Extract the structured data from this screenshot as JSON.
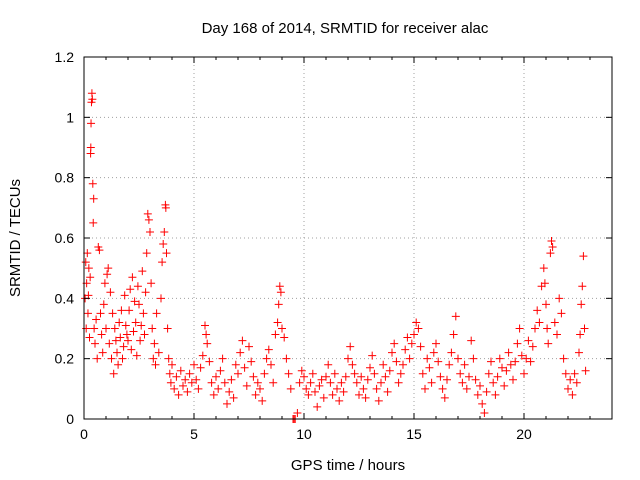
{
  "chart_data": {
    "type": "scatter",
    "title": "Day 168 of 2014, SRMTID for receiver alac",
    "xlabel": "GPS time / hours",
    "ylabel": "SRMTID / TECUs",
    "xlim": [
      0,
      24
    ],
    "ylim": [
      0,
      1.2
    ],
    "xticks": [
      0,
      5,
      10,
      15,
      20
    ],
    "xtick_labels": [
      "0",
      "5",
      "10",
      "15",
      "20"
    ],
    "yticks": [
      0,
      0.2,
      0.4,
      0.6,
      0.8,
      1.0,
      1.2
    ],
    "ytick_labels": [
      "0",
      "0.2",
      "0.4",
      "0.6",
      "0.8",
      "1",
      "1.2"
    ],
    "grid": true,
    "marker": "+",
    "color": "#ff0000",
    "series": [
      {
        "name": "SRMTID",
        "points": [
          [
            0.05,
            0.4
          ],
          [
            0.08,
            0.52
          ],
          [
            0.1,
            0.3
          ],
          [
            0.12,
            0.45
          ],
          [
            0.15,
            0.55
          ],
          [
            0.18,
            0.35
          ],
          [
            0.2,
            0.41
          ],
          [
            0.22,
            0.5
          ],
          [
            0.25,
            0.27
          ],
          [
            0.28,
            0.47
          ],
          [
            0.3,
            0.88
          ],
          [
            0.31,
            0.9
          ],
          [
            0.32,
            0.98
          ],
          [
            0.34,
            1.05
          ],
          [
            0.36,
            1.08
          ],
          [
            0.38,
            1.06
          ],
          [
            0.4,
            0.78
          ],
          [
            0.42,
            0.65
          ],
          [
            0.44,
            0.73
          ],
          [
            0.46,
            0.3
          ],
          [
            0.5,
            0.25
          ],
          [
            0.55,
            0.33
          ],
          [
            0.6,
            0.2
          ],
          [
            0.65,
            0.57
          ],
          [
            0.7,
            0.56
          ],
          [
            0.75,
            0.35
          ],
          [
            0.8,
            0.28
          ],
          [
            0.85,
            0.22
          ],
          [
            0.9,
            0.38
          ],
          [
            0.95,
            0.45
          ],
          [
            1.0,
            0.3
          ],
          [
            1.05,
            0.48
          ],
          [
            1.1,
            0.5
          ],
          [
            1.15,
            0.25
          ],
          [
            1.2,
            0.42
          ],
          [
            1.25,
            0.2
          ],
          [
            1.3,
            0.35
          ],
          [
            1.35,
            0.15
          ],
          [
            1.4,
            0.3
          ],
          [
            1.45,
            0.26
          ],
          [
            1.5,
            0.22
          ],
          [
            1.55,
            0.18
          ],
          [
            1.6,
            0.32
          ],
          [
            1.65,
            0.27
          ],
          [
            1.7,
            0.36
          ],
          [
            1.75,
            0.2
          ],
          [
            1.8,
            0.24
          ],
          [
            1.85,
            0.41
          ],
          [
            1.9,
            0.31
          ],
          [
            1.95,
            0.28
          ],
          [
            2.0,
            0.26
          ],
          [
            2.05,
            0.36
          ],
          [
            2.1,
            0.43
          ],
          [
            2.15,
            0.23
          ],
          [
            2.2,
            0.47
          ],
          [
            2.25,
            0.29
          ],
          [
            2.3,
            0.39
          ],
          [
            2.35,
            0.32
          ],
          [
            2.4,
            0.21
          ],
          [
            2.45,
            0.44
          ],
          [
            2.5,
            0.38
          ],
          [
            2.55,
            0.26
          ],
          [
            2.6,
            0.31
          ],
          [
            2.65,
            0.49
          ],
          [
            2.7,
            0.35
          ],
          [
            2.75,
            0.28
          ],
          [
            2.8,
            0.42
          ],
          [
            2.85,
            0.55
          ],
          [
            2.9,
            0.68
          ],
          [
            2.95,
            0.66
          ],
          [
            3.0,
            0.62
          ],
          [
            3.05,
            0.45
          ],
          [
            3.1,
            0.3
          ],
          [
            3.15,
            0.2
          ],
          [
            3.2,
            0.25
          ],
          [
            3.25,
            0.18
          ],
          [
            3.3,
            0.35
          ],
          [
            3.4,
            0.22
          ],
          [
            3.5,
            0.4
          ],
          [
            3.55,
            0.52
          ],
          [
            3.6,
            0.58
          ],
          [
            3.65,
            0.62
          ],
          [
            3.7,
            0.71
          ],
          [
            3.72,
            0.7
          ],
          [
            3.75,
            0.55
          ],
          [
            3.8,
            0.3
          ],
          [
            3.85,
            0.2
          ],
          [
            3.9,
            0.15
          ],
          [
            3.95,
            0.12
          ],
          [
            4.0,
            0.18
          ],
          [
            4.1,
            0.1
          ],
          [
            4.2,
            0.14
          ],
          [
            4.3,
            0.08
          ],
          [
            4.4,
            0.16
          ],
          [
            4.5,
            0.11
          ],
          [
            4.6,
            0.13
          ],
          [
            4.7,
            0.09
          ],
          [
            4.8,
            0.15
          ],
          [
            4.9,
            0.12
          ],
          [
            5.0,
            0.18
          ],
          [
            5.1,
            0.13
          ],
          [
            5.2,
            0.1
          ],
          [
            5.3,
            0.17
          ],
          [
            5.4,
            0.21
          ],
          [
            5.5,
            0.31
          ],
          [
            5.55,
            0.28
          ],
          [
            5.6,
            0.25
          ],
          [
            5.7,
            0.19
          ],
          [
            5.8,
            0.12
          ],
          [
            5.9,
            0.08
          ],
          [
            6.0,
            0.14
          ],
          [
            6.1,
            0.1
          ],
          [
            6.2,
            0.16
          ],
          [
            6.3,
            0.2
          ],
          [
            6.4,
            0.12
          ],
          [
            6.5,
            0.05
          ],
          [
            6.6,
            0.09
          ],
          [
            6.7,
            0.13
          ],
          [
            6.8,
            0.07
          ],
          [
            6.9,
            0.18
          ],
          [
            7.0,
            0.15
          ],
          [
            7.1,
            0.22
          ],
          [
            7.2,
            0.26
          ],
          [
            7.3,
            0.17
          ],
          [
            7.4,
            0.11
          ],
          [
            7.5,
            0.24
          ],
          [
            7.6,
            0.19
          ],
          [
            7.7,
            0.14
          ],
          [
            7.8,
            0.08
          ],
          [
            7.9,
            0.12
          ],
          [
            8.0,
            0.1
          ],
          [
            8.1,
            0.06
          ],
          [
            8.2,
            0.15
          ],
          [
            8.3,
            0.2
          ],
          [
            8.4,
            0.23
          ],
          [
            8.5,
            0.18
          ],
          [
            8.6,
            0.12
          ],
          [
            8.7,
            0.28
          ],
          [
            8.8,
            0.32
          ],
          [
            8.85,
            0.38
          ],
          [
            8.9,
            0.44
          ],
          [
            8.95,
            0.42
          ],
          [
            9.0,
            0.3
          ],
          [
            9.1,
            0.27
          ],
          [
            9.2,
            0.2
          ],
          [
            9.3,
            0.15
          ],
          [
            9.4,
            0.1
          ],
          [
            9.5,
            0.0
          ],
          [
            9.55,
            0.0
          ],
          [
            9.6,
            0.0
          ],
          [
            9.7,
            0.02
          ],
          [
            9.8,
            0.12
          ],
          [
            9.9,
            0.16
          ],
          [
            10.0,
            0.14
          ],
          [
            10.1,
            0.1
          ],
          [
            10.2,
            0.08
          ],
          [
            10.3,
            0.12
          ],
          [
            10.4,
            0.15
          ],
          [
            10.5,
            0.09
          ],
          [
            10.6,
            0.04
          ],
          [
            10.7,
            0.11
          ],
          [
            10.8,
            0.13
          ],
          [
            10.9,
            0.07
          ],
          [
            11.0,
            0.14
          ],
          [
            11.1,
            0.18
          ],
          [
            11.2,
            0.12
          ],
          [
            11.3,
            0.08
          ],
          [
            11.4,
            0.15
          ],
          [
            11.5,
            0.1
          ],
          [
            11.6,
            0.06
          ],
          [
            11.7,
            0.12
          ],
          [
            11.8,
            0.09
          ],
          [
            11.9,
            0.14
          ],
          [
            12.0,
            0.2
          ],
          [
            12.1,
            0.24
          ],
          [
            12.2,
            0.18
          ],
          [
            12.3,
            0.15
          ],
          [
            12.4,
            0.12
          ],
          [
            12.5,
            0.08
          ],
          [
            12.6,
            0.14
          ],
          [
            12.7,
            0.1
          ],
          [
            12.8,
            0.07
          ],
          [
            12.9,
            0.13
          ],
          [
            13.0,
            0.17
          ],
          [
            13.1,
            0.21
          ],
          [
            13.2,
            0.15
          ],
          [
            13.3,
            0.1
          ],
          [
            13.4,
            0.06
          ],
          [
            13.5,
            0.12
          ],
          [
            13.6,
            0.18
          ],
          [
            13.7,
            0.14
          ],
          [
            13.8,
            0.09
          ],
          [
            13.9,
            0.16
          ],
          [
            14.0,
            0.22
          ],
          [
            14.1,
            0.25
          ],
          [
            14.2,
            0.19
          ],
          [
            14.3,
            0.12
          ],
          [
            14.4,
            0.15
          ],
          [
            14.5,
            0.18
          ],
          [
            14.6,
            0.23
          ],
          [
            14.7,
            0.27
          ],
          [
            14.8,
            0.2
          ],
          [
            14.9,
            0.25
          ],
          [
            15.0,
            0.28
          ],
          [
            15.1,
            0.32
          ],
          [
            15.2,
            0.3
          ],
          [
            15.3,
            0.24
          ],
          [
            15.4,
            0.15
          ],
          [
            15.5,
            0.1
          ],
          [
            15.6,
            0.2
          ],
          [
            15.7,
            0.17
          ],
          [
            15.8,
            0.12
          ],
          [
            15.9,
            0.22
          ],
          [
            16.0,
            0.25
          ],
          [
            16.1,
            0.19
          ],
          [
            16.2,
            0.14
          ],
          [
            16.3,
            0.1
          ],
          [
            16.4,
            0.07
          ],
          [
            16.5,
            0.13
          ],
          [
            16.6,
            0.18
          ],
          [
            16.7,
            0.22
          ],
          [
            16.8,
            0.28
          ],
          [
            16.9,
            0.34
          ],
          [
            17.0,
            0.2
          ],
          [
            17.1,
            0.15
          ],
          [
            17.2,
            0.12
          ],
          [
            17.3,
            0.18
          ],
          [
            17.4,
            0.1
          ],
          [
            17.5,
            0.14
          ],
          [
            17.6,
            0.26
          ],
          [
            17.7,
            0.2
          ],
          [
            17.8,
            0.13
          ],
          [
            17.9,
            0.08
          ],
          [
            18.0,
            0.11
          ],
          [
            18.1,
            0.05
          ],
          [
            18.2,
            0.02
          ],
          [
            18.3,
            0.09
          ],
          [
            18.4,
            0.15
          ],
          [
            18.5,
            0.19
          ],
          [
            18.6,
            0.12
          ],
          [
            18.7,
            0.08
          ],
          [
            18.8,
            0.14
          ],
          [
            18.9,
            0.2
          ],
          [
            19.0,
            0.17
          ],
          [
            19.1,
            0.11
          ],
          [
            19.2,
            0.16
          ],
          [
            19.3,
            0.22
          ],
          [
            19.4,
            0.18
          ],
          [
            19.5,
            0.13
          ],
          [
            19.6,
            0.19
          ],
          [
            19.7,
            0.25
          ],
          [
            19.8,
            0.3
          ],
          [
            19.9,
            0.21
          ],
          [
            20.0,
            0.15
          ],
          [
            20.1,
            0.2
          ],
          [
            20.2,
            0.26
          ],
          [
            20.3,
            0.19
          ],
          [
            20.4,
            0.24
          ],
          [
            20.5,
            0.3
          ],
          [
            20.6,
            0.36
          ],
          [
            20.7,
            0.32
          ],
          [
            20.8,
            0.44
          ],
          [
            20.9,
            0.5
          ],
          [
            20.95,
            0.45
          ],
          [
            21.0,
            0.38
          ],
          [
            21.05,
            0.3
          ],
          [
            21.1,
            0.25
          ],
          [
            21.2,
            0.55
          ],
          [
            21.25,
            0.59
          ],
          [
            21.3,
            0.57
          ],
          [
            21.4,
            0.32
          ],
          [
            21.5,
            0.28
          ],
          [
            21.6,
            0.4
          ],
          [
            21.7,
            0.35
          ],
          [
            21.8,
            0.2
          ],
          [
            21.9,
            0.15
          ],
          [
            22.0,
            0.1
          ],
          [
            22.1,
            0.13
          ],
          [
            22.2,
            0.08
          ],
          [
            22.3,
            0.15
          ],
          [
            22.4,
            0.12
          ],
          [
            22.5,
            0.22
          ],
          [
            22.55,
            0.28
          ],
          [
            22.6,
            0.38
          ],
          [
            22.65,
            0.44
          ],
          [
            22.7,
            0.54
          ],
          [
            22.75,
            0.3
          ],
          [
            22.8,
            0.16
          ]
        ]
      }
    ]
  }
}
